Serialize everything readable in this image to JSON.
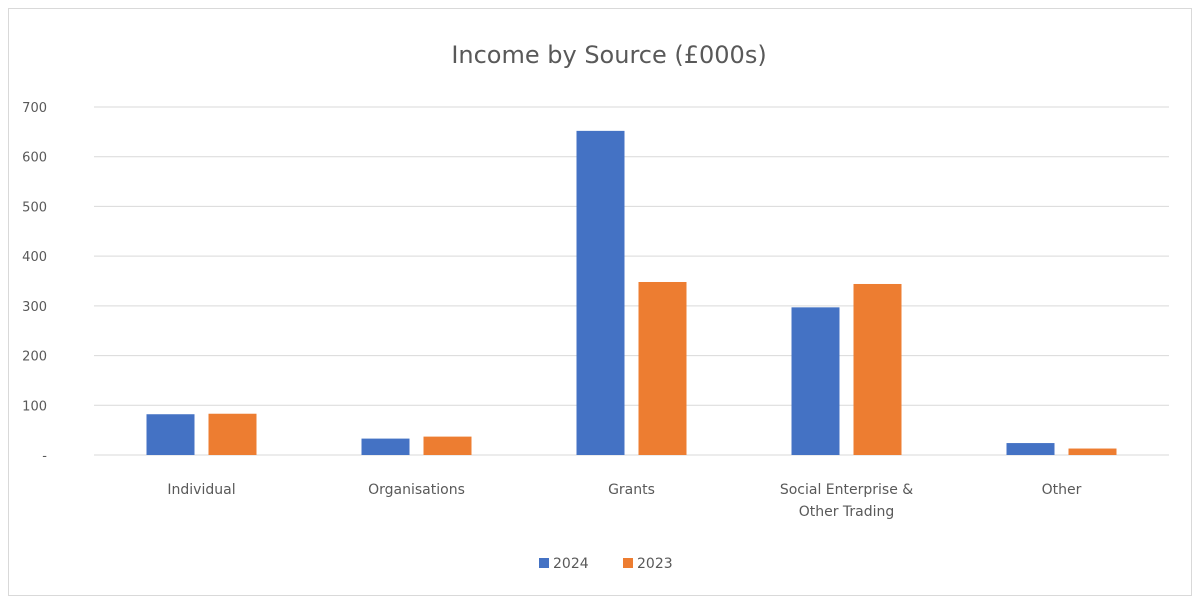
{
  "chart_data": {
    "type": "bar",
    "title": "Income by Source (£000s)",
    "categories": [
      [
        "Individual"
      ],
      [
        "Organisations"
      ],
      [
        "Grants"
      ],
      [
        "Social Enterprise &",
        "Other Trading"
      ],
      [
        "Other"
      ]
    ],
    "series": [
      {
        "name": "2024",
        "color": "#4472c4",
        "values": [
          82,
          33,
          652,
          297,
          24
        ]
      },
      {
        "name": "2023",
        "color": "#ed7d31",
        "values": [
          83,
          37,
          348,
          344,
          13
        ]
      }
    ],
    "ylim": [
      0,
      700
    ],
    "yticks": [
      {
        "value": 700,
        "label": "700"
      },
      {
        "value": 600,
        "label": "600"
      },
      {
        "value": 500,
        "label": "500"
      },
      {
        "value": 400,
        "label": "400"
      },
      {
        "value": 300,
        "label": "300"
      },
      {
        "value": 200,
        "label": "200"
      },
      {
        "value": 100,
        "label": "100"
      },
      {
        "value": 0,
        "label": "-"
      }
    ],
    "grid": true,
    "legend_position": "bottom"
  }
}
